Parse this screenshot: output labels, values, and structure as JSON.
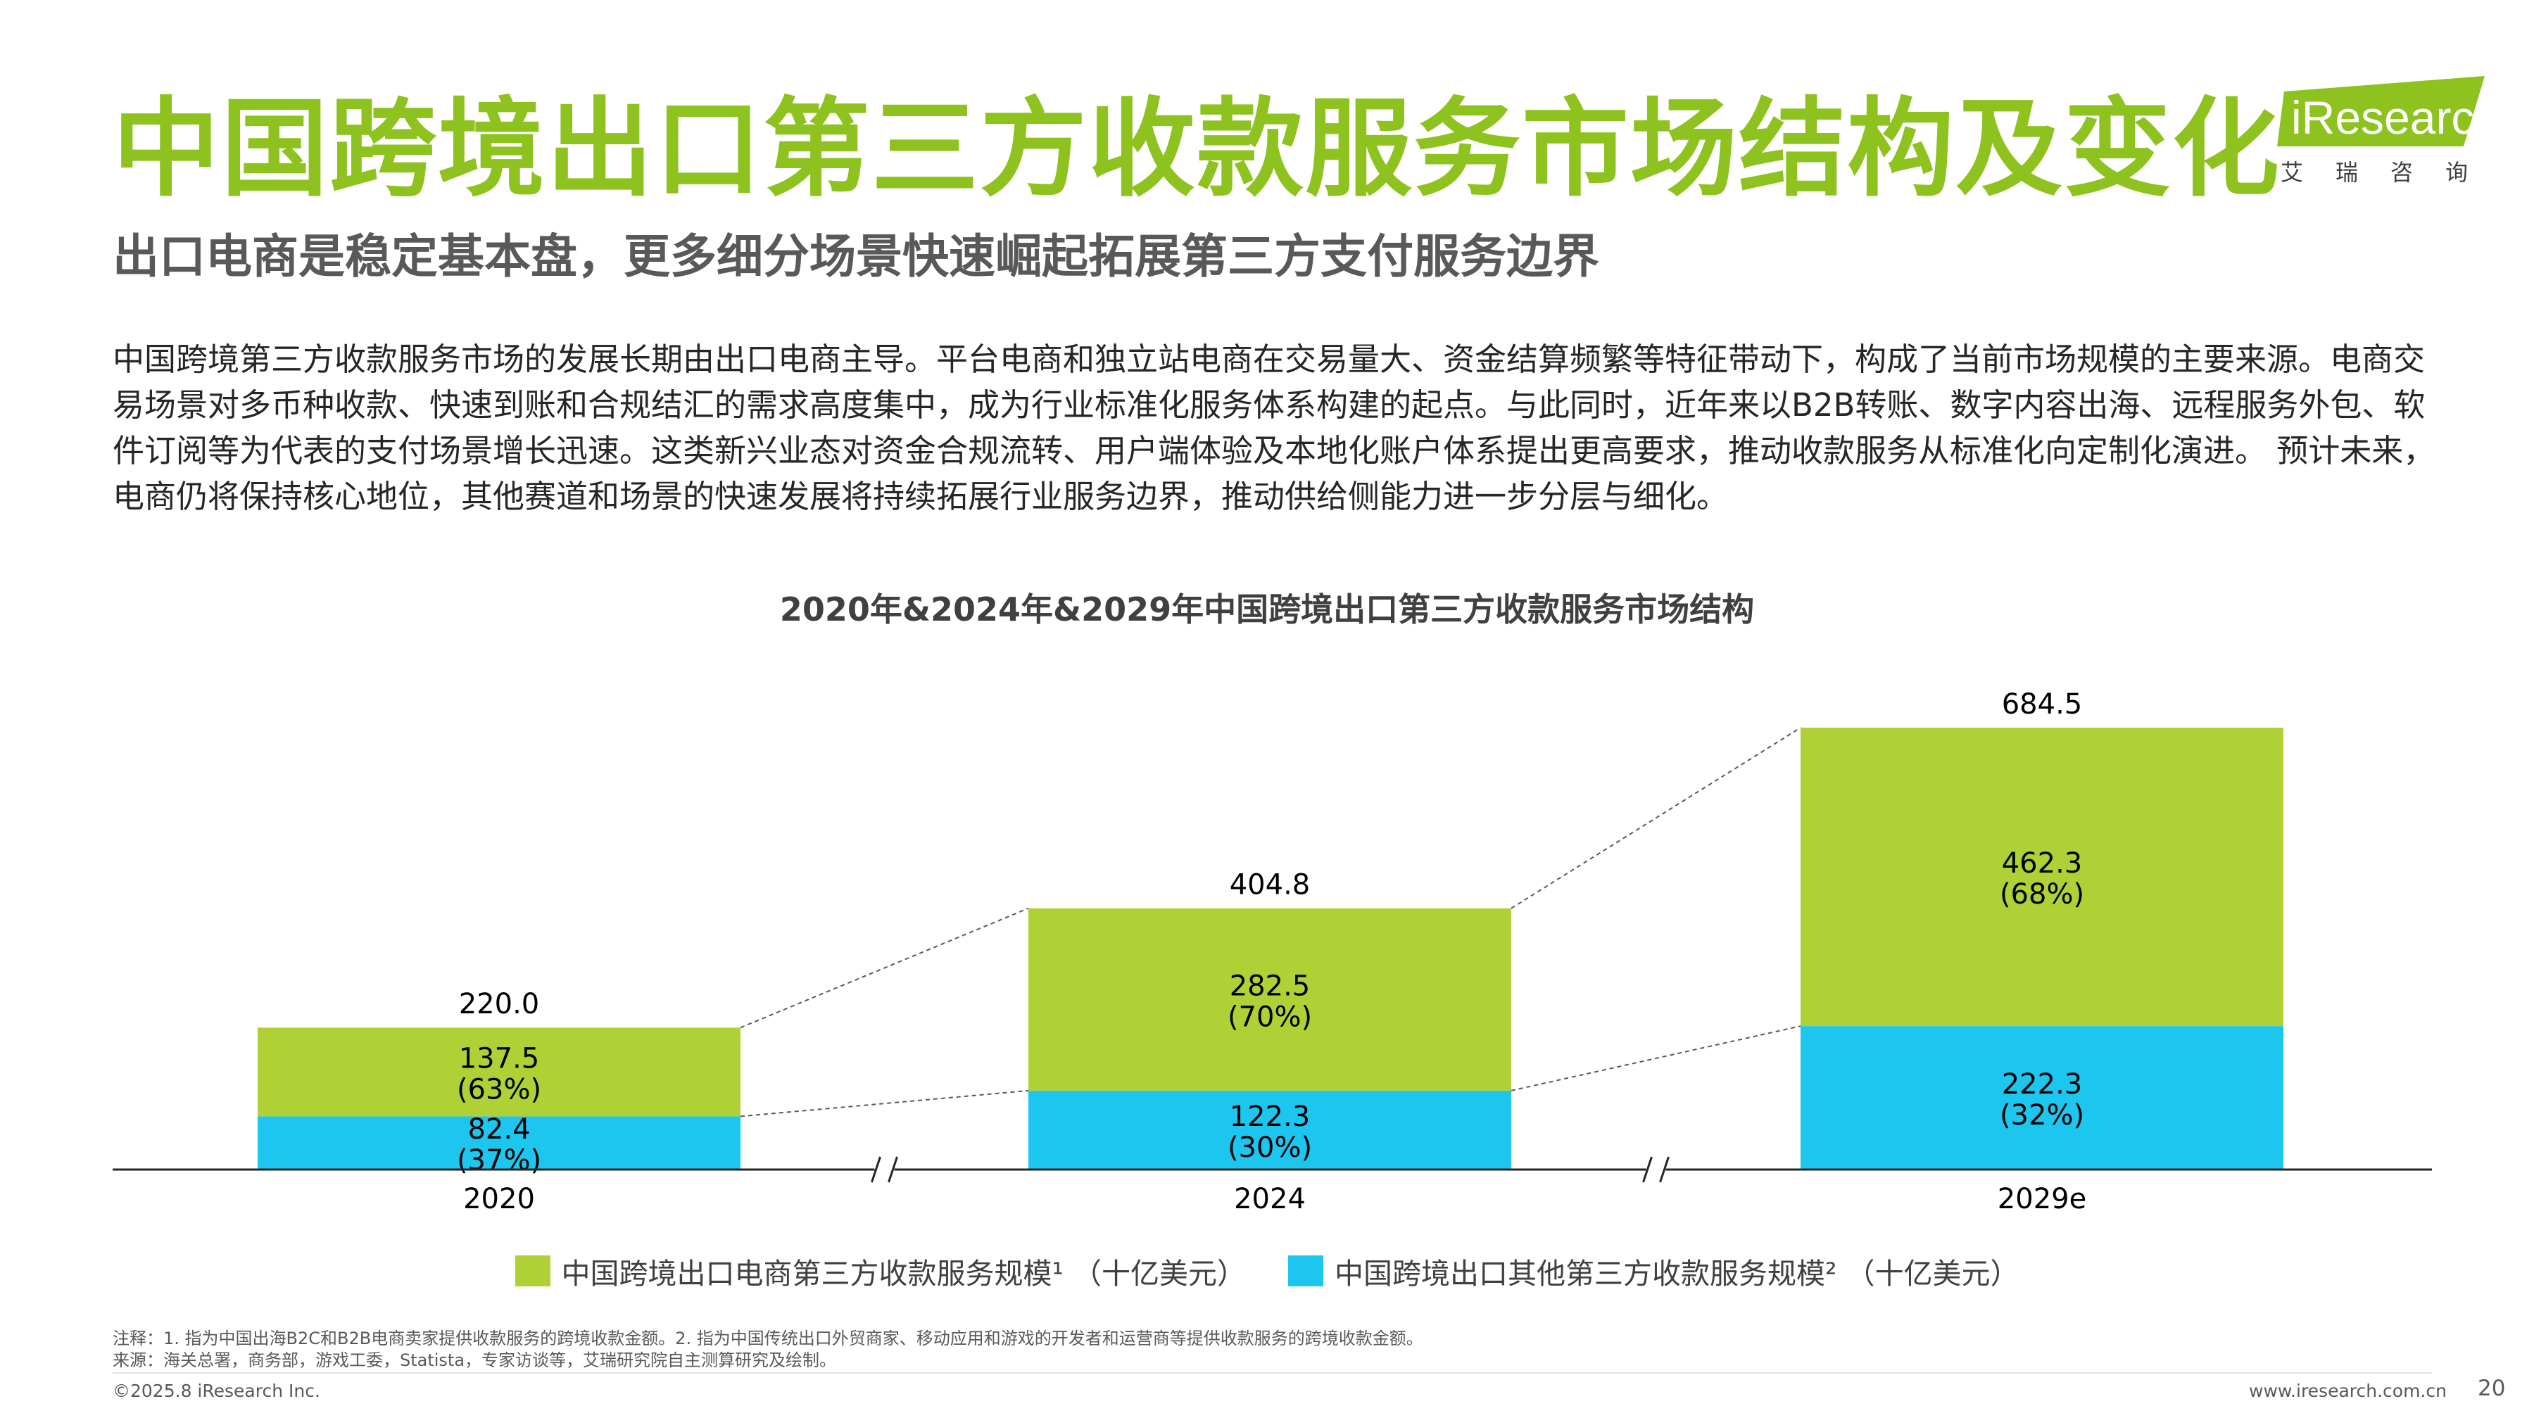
{
  "title": "中国跨境出口第三方收款服务市场结构及变化",
  "subtitle": "出口电商是稳定基本盘，更多细分场景快速崛起拓展第三方支付服务边界",
  "intro": "中国跨境第三方收款服务市场的发展长期由出口电商主导。平台电商和独立站电商在交易量大、资金结算频繁等特征带动下，构成了当前市场规模的主要来源。电商交易场景对多币种收款、快速到账和合规结汇的需求高度集中，成为行业标准化服务体系构建的起点。与此同时，近年来以B2B转账、数字内容出海、远程服务外包、软件订阅等为代表的支付场景增长迅速。这类新兴业态对资金合规流转、用户端体验及本地化账户体系提出更高要求，推动收款服务从标准化向定制化演进。 预计未来，电商仍将保持核心地位，其他赛道和场景的快速发展将持续拓展行业服务边界，推动供给侧能力进一步分层与细化。",
  "logo": {
    "text": "iResearch",
    "cn": "艾瑞咨询"
  },
  "colors": {
    "accent": "#8DC21F",
    "ecommerce": "#AFD135",
    "other": "#1DC6EE"
  },
  "chart_data": {
    "type": "bar",
    "stacked": true,
    "title": "2020年&2024年&2029年中国跨境出口第三方收款服务市场结构",
    "categories": [
      "2020",
      "2024",
      "2029e"
    ],
    "series": [
      {
        "name": "中国跨境出口其他第三方收款服务规模² （十亿美元）",
        "values": [
          82.4,
          122.3,
          222.3
        ],
        "shares": [
          "(37%)",
          "(30%)",
          "(32%)"
        ],
        "color": "#1DC6EE"
      },
      {
        "name": "中国跨境出口电商第三方收款服务规模¹ （十亿美元）",
        "values": [
          137.5,
          282.5,
          462.3
        ],
        "shares": [
          "(63%)",
          "(70%)",
          "(68%)"
        ],
        "color": "#AFD135"
      }
    ],
    "totals": [
      220.0,
      404.8,
      684.5
    ],
    "total_labels": [
      "220.0",
      "404.8",
      "684.5"
    ],
    "value_labels": [
      [
        "82.4",
        "122.3",
        "222.3"
      ],
      [
        "137.5",
        "282.5",
        "462.3"
      ]
    ],
    "axis_breaks": true,
    "ylim": [
      0,
      700
    ],
    "xlabel": "",
    "ylabel": "",
    "grid": false,
    "legend_position": "bottom"
  },
  "notes": [
    "注释：1. 指为中国出海B2C和B2B电商卖家提供收款服务的跨境收款金额。2. 指为中国传统出口外贸商家、移动应用和游戏的开发者和运营商等提供收款服务的跨境收款金额。",
    "来源：海关总署，商务部，游戏工委，Statista，专家访谈等，艾瑞研究院自主测算研究及绘制。"
  ],
  "footer": {
    "copyright": "©2025.8 iResearch Inc.",
    "site": "www.iresearch.com.cn",
    "page": "20"
  }
}
